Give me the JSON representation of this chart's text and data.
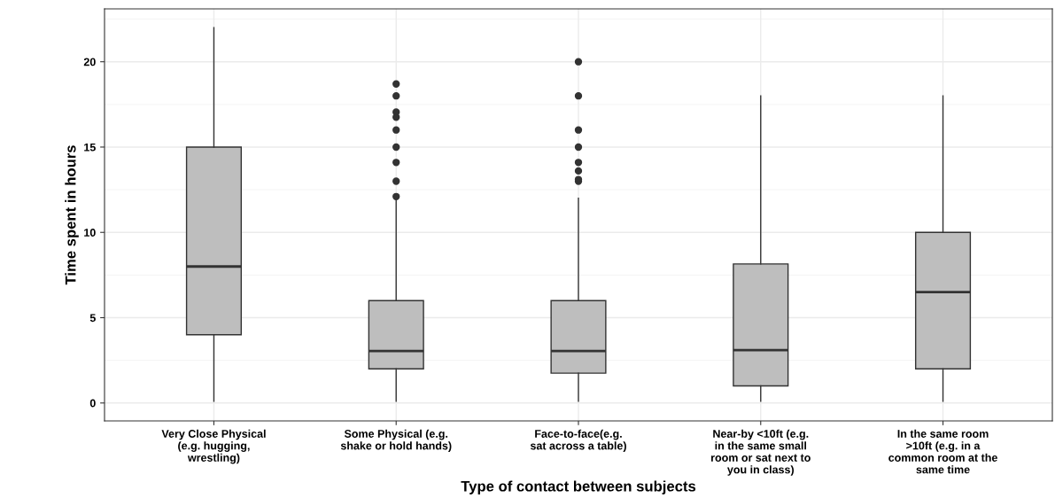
{
  "chart_data": {
    "type": "box",
    "xlabel": "Type of contact between subjects",
    "ylabel": "Time spent in hours",
    "categories": [
      "Very Close Physical\n(e.g. hugging,\nwrestling)",
      "Some Physical (e.g.\nshake or hold hands)",
      "Face-to-face(e.g.\nsat across a table)",
      "Near-by <10ft (e.g.\nin the same small\nroom or sat next to\nyou in class)",
      "In the same room\n>10ft (e.g. in a\ncommon room at the\nsame time"
    ],
    "boxes": [
      {
        "low": 0.1,
        "q1": 4,
        "median": 8,
        "q3": 15,
        "high": 22
      },
      {
        "low": 0.1,
        "q1": 2,
        "median": 3.05,
        "q3": 6,
        "high": 12,
        "outliers": [
          12.1,
          13,
          14.1,
          15,
          16,
          16.75,
          17.05,
          18,
          18.7
        ]
      },
      {
        "low": 0.1,
        "q1": 1.75,
        "median": 3.05,
        "q3": 6,
        "high": 12,
        "outliers": [
          13,
          13.1,
          13.6,
          14.1,
          15,
          16,
          18,
          20
        ]
      },
      {
        "low": 0.1,
        "q1": 1,
        "median": 3.1,
        "q3": 8.15,
        "high": 18
      },
      {
        "low": 0.1,
        "q1": 2,
        "median": 6.5,
        "q3": 10,
        "high": 18
      }
    ],
    "color": "#bebebe",
    "ylim": [
      -1.05,
      23.1
    ],
    "yticks": [
      0,
      5,
      10,
      15,
      20
    ],
    "grid": true
  }
}
